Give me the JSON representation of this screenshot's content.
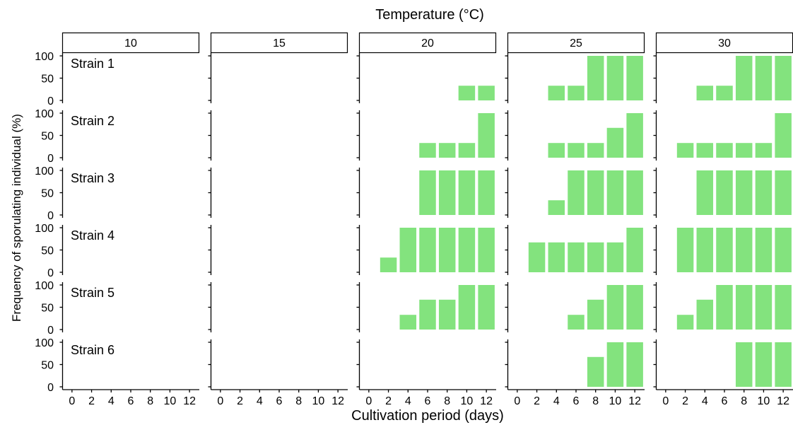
{
  "chart_data": {
    "type": "bar",
    "title": "Temperature (°C)",
    "xlabel": "Cultivation period (days)",
    "ylabel": "Frequency of sporulating individual (%)",
    "ylim": [
      0,
      100
    ],
    "yticks": [
      "0",
      "50",
      "100"
    ],
    "xticks": [
      "0",
      "2",
      "4",
      "6",
      "8",
      "10",
      "12"
    ],
    "x": [
      2,
      4,
      6,
      8,
      10,
      12
    ],
    "bar_color": "#83e37e",
    "temperatures": [
      "10",
      "15",
      "20",
      "25",
      "30"
    ],
    "strains": [
      "Strain 1",
      "Strain 2",
      "Strain 3",
      "Strain 4",
      "Strain 5",
      "Strain 6"
    ],
    "values": {
      "10": [
        [
          0,
          0,
          0,
          0,
          0,
          0
        ],
        [
          0,
          0,
          0,
          0,
          0,
          0
        ],
        [
          0,
          0,
          0,
          0,
          0,
          0
        ],
        [
          0,
          0,
          0,
          0,
          0,
          0
        ],
        [
          0,
          0,
          0,
          0,
          0,
          0
        ],
        [
          0,
          0,
          0,
          0,
          0,
          0
        ]
      ],
      "15": [
        [
          0,
          0,
          0,
          0,
          0,
          0
        ],
        [
          0,
          0,
          0,
          0,
          0,
          0
        ],
        [
          0,
          0,
          0,
          0,
          0,
          0
        ],
        [
          0,
          0,
          0,
          0,
          0,
          0
        ],
        [
          0,
          0,
          0,
          0,
          0,
          0
        ],
        [
          0,
          0,
          0,
          0,
          0,
          0
        ]
      ],
      "20": [
        [
          0,
          0,
          0,
          0,
          33,
          33
        ],
        [
          0,
          0,
          33,
          33,
          33,
          100
        ],
        [
          0,
          0,
          100,
          100,
          100,
          100
        ],
        [
          33,
          100,
          100,
          100,
          100,
          100
        ],
        [
          0,
          33,
          67,
          67,
          100,
          100
        ],
        [
          0,
          0,
          0,
          0,
          0,
          0
        ]
      ],
      "25": [
        [
          0,
          33,
          33,
          100,
          100,
          100
        ],
        [
          0,
          33,
          33,
          33,
          67,
          100
        ],
        [
          0,
          33,
          100,
          100,
          100,
          100
        ],
        [
          67,
          67,
          67,
          67,
          67,
          100
        ],
        [
          0,
          0,
          33,
          67,
          100,
          100
        ],
        [
          0,
          0,
          0,
          67,
          100,
          100
        ]
      ],
      "30": [
        [
          0,
          33,
          33,
          100,
          100,
          100
        ],
        [
          33,
          33,
          33,
          33,
          33,
          100
        ],
        [
          0,
          100,
          100,
          100,
          100,
          100
        ],
        [
          100,
          100,
          100,
          100,
          100,
          100
        ],
        [
          33,
          67,
          100,
          100,
          100,
          100
        ],
        [
          0,
          0,
          0,
          100,
          100,
          100
        ]
      ]
    }
  }
}
